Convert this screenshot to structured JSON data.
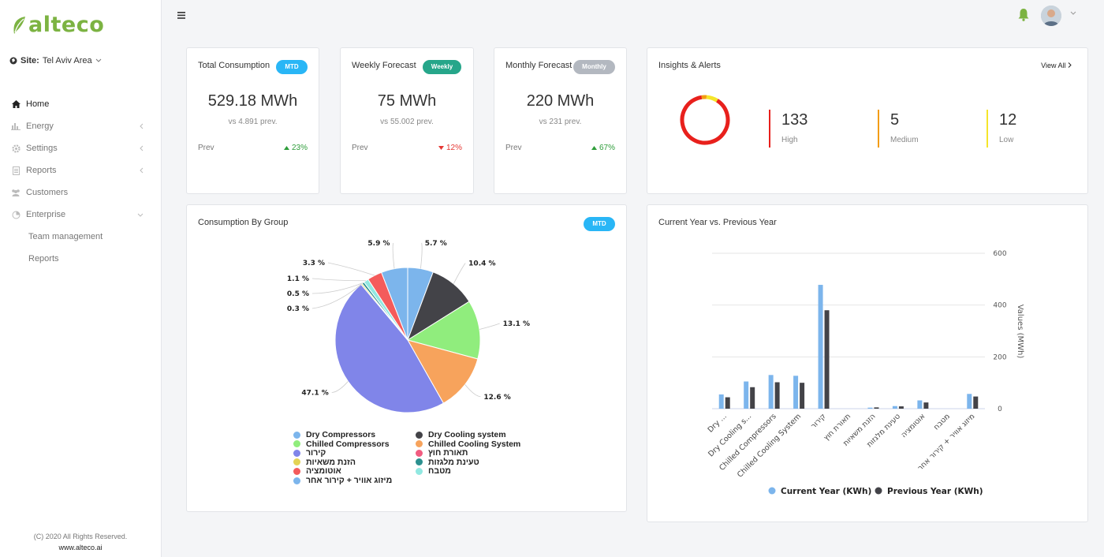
{
  "brand": {
    "name": "alteco"
  },
  "site": {
    "label": "Site:",
    "value": "Tel Aviv Area"
  },
  "nav": {
    "home": "Home",
    "energy": "Energy",
    "settings": "Settings",
    "reports": "Reports",
    "customers": "Customers",
    "enterprise": "Enterprise",
    "team_management": "Team management",
    "sub_reports": "Reports"
  },
  "footer": {
    "copyright": "(C) 2020 All Rights Reserved.",
    "url": "www.alteco.ai"
  },
  "kpis": [
    {
      "title": "Total Consumption",
      "badge": "MTD",
      "value": "529.18 MWh",
      "sub": "vs 4.891 prev.",
      "prev_label": "Prev",
      "change": "23%",
      "direction": "up"
    },
    {
      "title": "Weekly Forecast",
      "badge": "Weekly",
      "value": "75 MWh",
      "sub": "vs 55.002 prev.",
      "prev_label": "Prev",
      "change": "12%",
      "direction": "down"
    },
    {
      "title": "Monthly Forecast",
      "badge": "Monthly",
      "value": "220 MWh",
      "sub": "vs 231 prev.",
      "prev_label": "Prev",
      "change": "67%",
      "direction": "up"
    }
  ],
  "insights": {
    "title": "Insights & Alerts",
    "view_all": "View All",
    "donut": {
      "high": 133,
      "medium": 5,
      "low": 12
    },
    "items": [
      {
        "count": "133",
        "label": "High",
        "color": "#e8201c"
      },
      {
        "count": "5",
        "label": "Medium",
        "color": "#f39c12"
      },
      {
        "count": "12",
        "label": "Low",
        "color": "#f5e52a"
      }
    ]
  },
  "pie_card": {
    "title": "Consumption By Group",
    "badge": "MTD"
  },
  "bar_card": {
    "title": "Current Year vs. Previous Year"
  },
  "chart_data": [
    {
      "type": "pie",
      "title": "Consumption By Group",
      "slices": [
        {
          "label": "Dry Compressors",
          "value": 5.7,
          "color": "#7cb5ec",
          "display": "5.7 %"
        },
        {
          "label": "Dry Cooling system",
          "value": 10.4,
          "color": "#434348",
          "display": "10.4 %"
        },
        {
          "label": "Chilled Compressors",
          "value": 13.1,
          "color": "#90ed7d",
          "display": "13.1 %"
        },
        {
          "label": "Chilled Cooling System",
          "value": 12.6,
          "color": "#f7a35c",
          "display": "12.6 %"
        },
        {
          "label": "קירור",
          "value": 47.1,
          "color": "#8085e9",
          "display": "47.1 %"
        },
        {
          "label": "תאורת חוץ",
          "value": 0.0,
          "color": "#f15c80",
          "display": ""
        },
        {
          "label": "הזנת משאיות",
          "value": 0.3,
          "color": "#e4d354",
          "display": "0.3 %"
        },
        {
          "label": "טעינת מלגזות",
          "value": 0.5,
          "color": "#2b908f",
          "display": "0.5 %"
        },
        {
          "label": "מטבח",
          "value": 1.1,
          "color": "#91e8e1",
          "display": "1.1 %"
        },
        {
          "label": "אוטומציה",
          "value": 3.3,
          "color": "#f45b5b",
          "display": "3.3 %"
        },
        {
          "label": "מיזוג אוויר + קירור אחר",
          "value": 5.9,
          "color": "#7cb5ec",
          "display": "5.9 %"
        }
      ],
      "legend": [
        [
          "Dry Compressors",
          "Dry Cooling system"
        ],
        [
          "Chilled Compressors",
          "Chilled Cooling System"
        ],
        [
          "קירור",
          "תאורת חוץ"
        ],
        [
          "הזנת משאיות",
          "טעינת מלגזות"
        ],
        [
          "אוטומציה",
          "מטבח"
        ],
        [
          "מיזוג אוויר + קירור אחר"
        ]
      ]
    },
    {
      "type": "bar",
      "title": "Current Year vs. Previous Year",
      "categories": [
        "Dry ...",
        "Dry Cooling s...",
        "Chilled Compressors",
        "Chilled Cooling System",
        "קירור",
        "תאורת חוץ",
        "הזנת משאיות",
        "טעינת מלגזות",
        "אוטומציה",
        "מטבח",
        "מיזוג אוויר + קירור אחר"
      ],
      "series": [
        {
          "name": "Current Year (KWh)",
          "color": "#7cb5ec",
          "values": [
            55,
            105,
            130,
            127,
            478,
            0,
            4,
            10,
            32,
            0,
            57
          ]
        },
        {
          "name": "Previous Year (KWh)",
          "color": "#434348",
          "values": [
            44,
            83,
            102,
            100,
            380,
            0,
            5,
            9,
            24,
            0,
            47
          ]
        }
      ],
      "ylabel": "Values (MWh)",
      "yticks": [
        "0",
        "200",
        "400",
        "600"
      ],
      "ylim": [
        0,
        600
      ],
      "y_axis_side": "right"
    }
  ]
}
